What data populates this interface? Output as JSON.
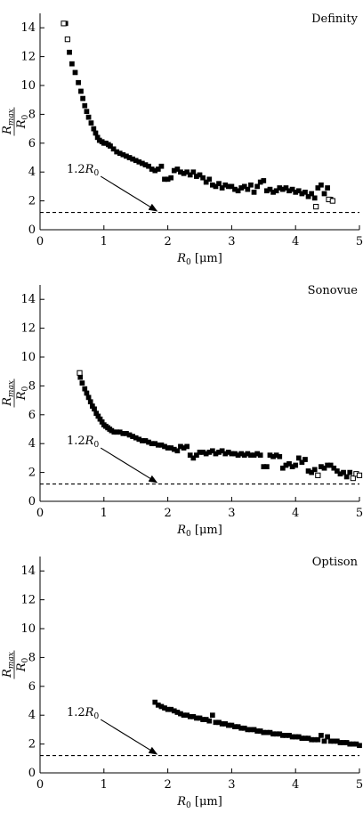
{
  "chart_data": [
    {
      "type": "scatter",
      "title": "Definity",
      "xlabel": "R0 [μm]",
      "ylabel": "Rmax / R0",
      "xlim": [
        0,
        5
      ],
      "ylim": [
        0,
        15
      ],
      "xticks": [
        "0",
        "1",
        "2",
        "3",
        "4",
        "5"
      ],
      "yticks": [
        "0",
        "2",
        "4",
        "6",
        "8",
        "10",
        "12",
        "14"
      ],
      "reference_line": {
        "y": 1.2,
        "style": "dashed"
      },
      "annotation": {
        "text": "1.2R0",
        "tail": [
          0.95,
          3.7
        ],
        "head": [
          1.83,
          1.3
        ]
      },
      "series": [
        {
          "marker": "square-filled",
          "x": [
            0.4,
            0.46,
            0.5,
            0.55,
            0.6,
            0.64,
            0.67,
            0.7,
            0.73,
            0.76,
            0.8,
            0.84,
            0.87,
            0.9,
            0.93,
            0.97,
            1.0,
            1.03,
            1.07,
            1.1,
            1.15,
            1.2,
            1.25,
            1.3,
            1.35,
            1.4,
            1.45,
            1.5,
            1.55,
            1.6,
            1.65,
            1.7,
            1.75,
            1.8,
            1.85,
            1.9,
            1.95,
            2.0,
            2.05,
            2.1,
            2.15,
            2.2,
            2.25,
            2.3,
            2.35,
            2.4,
            2.45,
            2.5,
            2.55,
            2.6,
            2.65,
            2.7,
            2.75,
            2.8,
            2.85,
            2.9,
            2.95,
            3.0,
            3.05,
            3.1,
            3.15,
            3.2,
            3.25,
            3.3,
            3.35,
            3.4,
            3.45,
            3.5,
            3.55,
            3.6,
            3.65,
            3.7,
            3.75,
            3.8,
            3.85,
            3.9,
            3.95,
            4.0,
            4.05,
            4.1,
            4.15,
            4.2,
            4.25,
            4.3,
            4.35,
            4.4,
            4.45,
            4.5,
            4.55
          ],
          "y": [
            14.3,
            12.3,
            11.5,
            10.9,
            10.2,
            9.6,
            9.1,
            8.6,
            8.2,
            7.8,
            7.4,
            7.0,
            6.7,
            6.4,
            6.2,
            6.1,
            6.0,
            6.0,
            5.9,
            5.8,
            5.6,
            5.4,
            5.3,
            5.2,
            5.1,
            5.0,
            4.9,
            4.8,
            4.7,
            4.6,
            4.5,
            4.4,
            4.2,
            4.1,
            4.2,
            4.4,
            3.5,
            3.5,
            3.6,
            4.1,
            4.2,
            4.0,
            3.9,
            4.0,
            3.8,
            4.0,
            3.7,
            3.8,
            3.6,
            3.3,
            3.5,
            3.1,
            3.0,
            3.2,
            2.9,
            3.1,
            3.0,
            3.0,
            2.8,
            2.7,
            2.9,
            3.0,
            2.8,
            3.1,
            2.6,
            3.0,
            3.3,
            3.4,
            2.7,
            2.8,
            2.6,
            2.7,
            2.9,
            2.8,
            2.9,
            2.7,
            2.8,
            2.6,
            2.7,
            2.5,
            2.6,
            2.3,
            2.5,
            2.2,
            2.9,
            3.1,
            2.5,
            2.9,
            2.1
          ]
        },
        {
          "marker": "square-open",
          "x": [
            0.37,
            0.43,
            4.32,
            4.52,
            4.58
          ],
          "y": [
            14.3,
            13.2,
            1.6,
            2.1,
            2.0
          ]
        }
      ]
    },
    {
      "type": "scatter",
      "title": "Sonovue",
      "xlabel": "R0 [μm]",
      "ylabel": "Rmax / R0",
      "xlim": [
        0,
        5
      ],
      "ylim": [
        0,
        15
      ],
      "xticks": [
        "0",
        "1",
        "2",
        "3",
        "4",
        "5"
      ],
      "yticks": [
        "0",
        "2",
        "4",
        "6",
        "8",
        "10",
        "12",
        "14"
      ],
      "reference_line": {
        "y": 1.2,
        "style": "dashed"
      },
      "annotation": {
        "text": "1.2R0",
        "tail": [
          0.95,
          3.7
        ],
        "head": [
          1.83,
          1.3
        ]
      },
      "series": [
        {
          "marker": "square-filled",
          "x": [
            0.63,
            0.66,
            0.7,
            0.73,
            0.76,
            0.79,
            0.82,
            0.85,
            0.88,
            0.91,
            0.94,
            0.97,
            1.0,
            1.03,
            1.06,
            1.09,
            1.12,
            1.16,
            1.2,
            1.25,
            1.3,
            1.35,
            1.4,
            1.45,
            1.5,
            1.55,
            1.6,
            1.65,
            1.7,
            1.75,
            1.8,
            1.85,
            1.9,
            1.95,
            2.0,
            2.05,
            2.1,
            2.15,
            2.2,
            2.25,
            2.3,
            2.35,
            2.4,
            2.45,
            2.5,
            2.55,
            2.6,
            2.65,
            2.7,
            2.75,
            2.8,
            2.85,
            2.9,
            2.95,
            3.0,
            3.05,
            3.1,
            3.15,
            3.2,
            3.25,
            3.3,
            3.35,
            3.4,
            3.45,
            3.5,
            3.55,
            3.6,
            3.65,
            3.7,
            3.75,
            3.8,
            3.85,
            3.9,
            3.95,
            4.0,
            4.05,
            4.1,
            4.15,
            4.2,
            4.25,
            4.3,
            4.35,
            4.4,
            4.45,
            4.5,
            4.55,
            4.6,
            4.65,
            4.7,
            4.75,
            4.8,
            4.85
          ],
          "y": [
            8.6,
            8.2,
            7.8,
            7.5,
            7.2,
            6.9,
            6.6,
            6.4,
            6.1,
            5.9,
            5.7,
            5.5,
            5.3,
            5.2,
            5.1,
            5.0,
            4.9,
            4.8,
            4.8,
            4.8,
            4.7,
            4.7,
            4.6,
            4.5,
            4.4,
            4.3,
            4.2,
            4.2,
            4.1,
            4.0,
            4.0,
            3.9,
            3.9,
            3.8,
            3.7,
            3.7,
            3.6,
            3.5,
            3.8,
            3.7,
            3.8,
            3.2,
            3.0,
            3.2,
            3.4,
            3.4,
            3.3,
            3.4,
            3.5,
            3.3,
            3.4,
            3.5,
            3.3,
            3.4,
            3.3,
            3.3,
            3.2,
            3.3,
            3.2,
            3.3,
            3.2,
            3.2,
            3.3,
            3.2,
            2.4,
            2.4,
            3.2,
            3.1,
            3.2,
            3.1,
            2.3,
            2.5,
            2.6,
            2.4,
            2.5,
            3.0,
            2.7,
            2.9,
            2.1,
            2.0,
            2.2,
            1.8,
            2.4,
            2.3,
            2.5,
            2.5,
            2.3,
            2.1,
            1.9,
            2.0,
            1.7,
            2.0
          ]
        },
        {
          "marker": "square-open",
          "x": [
            0.62,
            4.35,
            4.9,
            4.95,
            5.0
          ],
          "y": [
            8.9,
            1.8,
            1.6,
            1.9,
            1.8
          ]
        }
      ]
    },
    {
      "type": "scatter",
      "title": "Optison",
      "xlabel": "R0 [μm]",
      "ylabel": "Rmax / R0",
      "xlim": [
        0,
        5
      ],
      "ylim": [
        0,
        15
      ],
      "xticks": [
        "0",
        "1",
        "2",
        "3",
        "4",
        "5"
      ],
      "yticks": [
        "0",
        "2",
        "4",
        "6",
        "8",
        "10",
        "12",
        "14"
      ],
      "reference_line": {
        "y": 1.2,
        "style": "dashed"
      },
      "annotation": {
        "text": "1.2R0",
        "tail": [
          0.95,
          3.7
        ],
        "head": [
          1.83,
          1.3
        ]
      },
      "series": [
        {
          "marker": "square-filled",
          "x": [
            1.8,
            1.85,
            1.9,
            1.95,
            2.0,
            2.05,
            2.1,
            2.15,
            2.2,
            2.25,
            2.3,
            2.35,
            2.4,
            2.45,
            2.5,
            2.55,
            2.6,
            2.65,
            2.7,
            2.75,
            2.8,
            2.85,
            2.9,
            2.95,
            3.0,
            3.05,
            3.1,
            3.15,
            3.2,
            3.25,
            3.3,
            3.35,
            3.4,
            3.45,
            3.5,
            3.55,
            3.6,
            3.65,
            3.7,
            3.75,
            3.8,
            3.85,
            3.9,
            3.95,
            4.0,
            4.05,
            4.1,
            4.15,
            4.2,
            4.25,
            4.3,
            4.35,
            4.4,
            4.45,
            4.5,
            4.55,
            4.6,
            4.65,
            4.7,
            4.75,
            4.8,
            4.85,
            4.9,
            4.95,
            5.0
          ],
          "y": [
            4.9,
            4.7,
            4.6,
            4.5,
            4.4,
            4.4,
            4.3,
            4.2,
            4.1,
            4.0,
            4.0,
            3.9,
            3.9,
            3.8,
            3.8,
            3.7,
            3.7,
            3.6,
            4.0,
            3.5,
            3.5,
            3.4,
            3.4,
            3.3,
            3.3,
            3.2,
            3.2,
            3.1,
            3.1,
            3.0,
            3.0,
            3.0,
            2.9,
            2.9,
            2.8,
            2.8,
            2.8,
            2.7,
            2.7,
            2.7,
            2.6,
            2.6,
            2.6,
            2.5,
            2.5,
            2.5,
            2.4,
            2.4,
            2.4,
            2.3,
            2.3,
            2.3,
            2.6,
            2.2,
            2.5,
            2.2,
            2.2,
            2.2,
            2.1,
            2.1,
            2.1,
            2.0,
            2.0,
            2.0,
            1.9
          ]
        }
      ]
    }
  ]
}
